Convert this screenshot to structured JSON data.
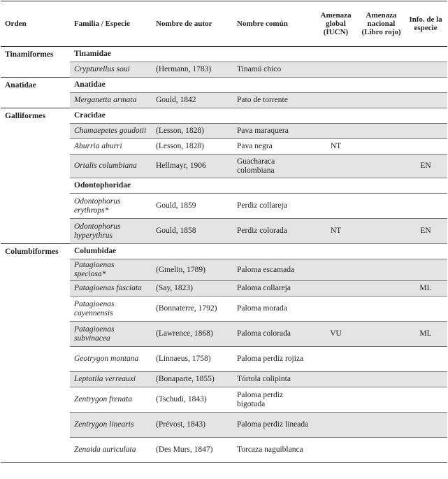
{
  "table": {
    "header": [
      "Orden",
      "Familia / Especie",
      "Nombre de autor",
      "Nombre común",
      "Amenaza global (IUCN)",
      "Amenaza nacional (Libro rojo)",
      "Info. de la especie"
    ],
    "rows": [
      {
        "order": "Tinamiformes",
        "family": "Tinamidae"
      },
      {
        "species": "Crypturellus soui",
        "author": "(Hermann, 1783)",
        "common": "Tinamú chico"
      },
      {
        "order": "Anatidae",
        "family": "Anatidae"
      },
      {
        "species": "Merganetta armata",
        "author": "Gould, 1842",
        "common": "Pato de torrente"
      },
      {
        "order": "Galliformes",
        "family": "Cracidae"
      },
      {
        "species": "Chamaepetes goudotii",
        "author": "(Lesson, 1828)",
        "common": "Pava maraquera"
      },
      {
        "species": "Aburria aburri",
        "author": "(Lesson, 1828)",
        "common": "Pava negra",
        "global": "NT"
      },
      {
        "species": "Ortalis columbiana",
        "author": "Hellmayr, 1906",
        "common": "Guacharaca colombiana",
        "info": "EN"
      },
      {
        "family": "Odontophoridae"
      },
      {
        "species": "Odontophorus erythrops*",
        "author": "Gould, 1859",
        "common": "Perdiz collareja"
      },
      {
        "species": "Odontophorus hyperythrus",
        "author": "Gould, 1858",
        "common": "Perdiz colorada",
        "global": "NT",
        "info": "EN"
      },
      {
        "order": "Columbiformes",
        "family": "Columbidae"
      },
      {
        "species": "Patagioenas speciosa*",
        "author": "(Gmelin, 1789)",
        "common": "Paloma escamada"
      },
      {
        "species": "Patagioenas fasciata",
        "author": "(Say, 1823)",
        "common": "Paloma collareja",
        "info": "ML"
      },
      {
        "species": "Patagioenas cayennensis",
        "author": "(Bonnaterre, 1792)",
        "common": "Paloma morada"
      },
      {
        "species": "Patagioenas subvinacea",
        "author": "(Lawrence, 1868)",
        "common": "Paloma colorada",
        "global": "VU",
        "info": "ML"
      },
      {
        "species": "Geotrygon montana",
        "author": "(Linnaeus, 1758)",
        "common": "Paloma perdiz rojiza"
      },
      {
        "species": "Leptotila verreauxi",
        "author": "(Bonaparte, 1855)",
        "common": "Tórtola colipinta"
      },
      {
        "species": "Zentrygon frenata",
        "author": "(Tschudi, 1843)",
        "common": "Paloma perdiz bigotuda"
      },
      {
        "species": "Zentrygon linearis",
        "author": "(Prévost, 1843)",
        "common": "Paloma perdiz lineada"
      },
      {
        "species": "Zenaida auriculata",
        "author": "(Des Murs, 1847)",
        "common": "Torcaza naguiblanca"
      }
    ]
  }
}
